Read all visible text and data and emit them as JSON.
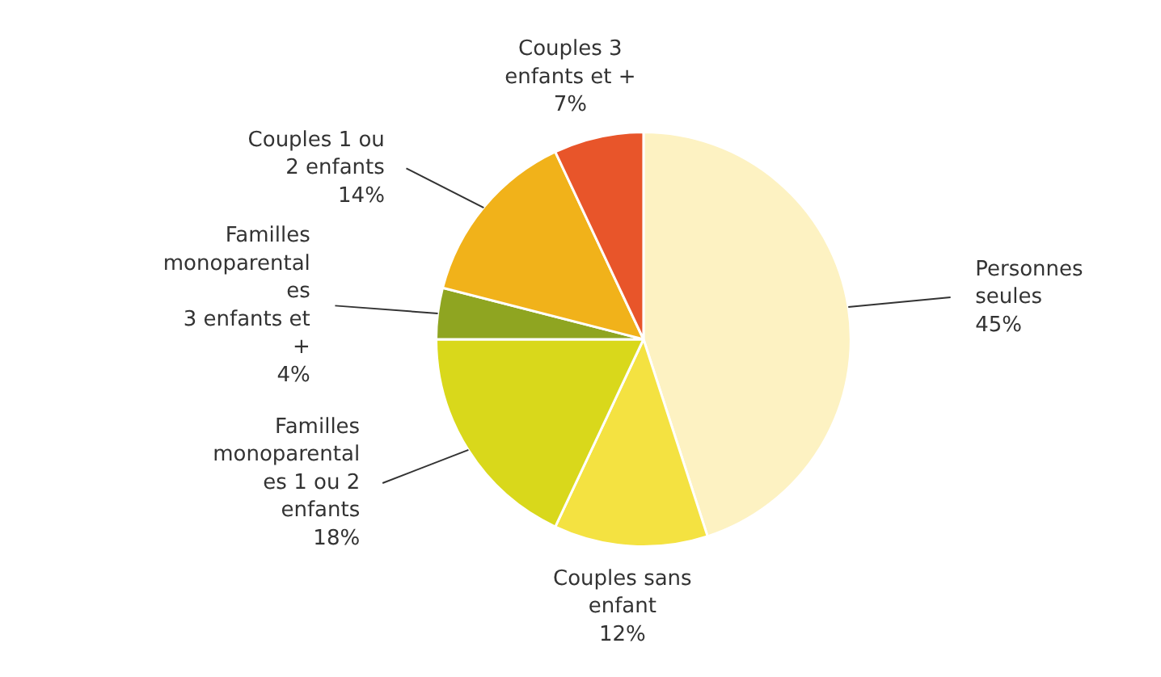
{
  "chart_data": {
    "type": "pie",
    "categories": [
      "Personnes seules",
      "Couples sans enfant",
      "Familles monoparentales 1 ou 2 enfants",
      "Familles monoparentales 3 enfants et +",
      "Couples 1 ou 2 enfants",
      "Couples 3 enfants et +"
    ],
    "values": [
      45,
      12,
      18,
      4,
      14,
      7
    ],
    "value_labels": [
      "45%",
      "12%",
      "18%",
      "4%",
      "14%",
      "7%"
    ],
    "colors": [
      "#fdf2c2",
      "#f4e241",
      "#d9d81b",
      "#8fa521",
      "#f1b21a",
      "#e8552a"
    ]
  }
}
